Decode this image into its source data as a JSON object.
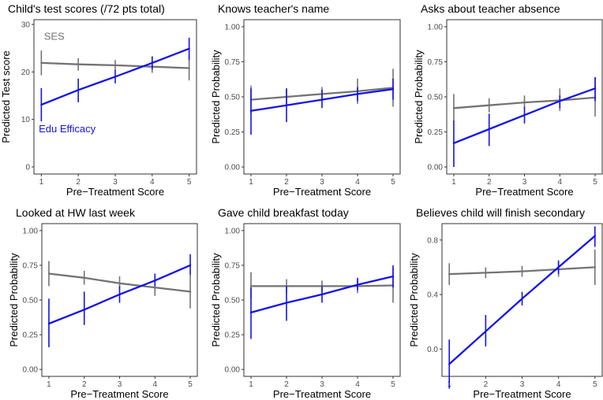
{
  "colors": {
    "ses": "#737373",
    "edu_efficacy": "#1414e6",
    "frame": "#333333"
  },
  "chart_data": [
    {
      "type": "line",
      "title": "Child's test scores (/72 pts total)",
      "xlabel": "Pre−Treatment Score",
      "ylabel": "Predicted Test score",
      "xlim": [
        0.8,
        5.2
      ],
      "ylim": [
        -1.5,
        31
      ],
      "x_ticks": [
        1,
        2,
        3,
        4,
        5
      ],
      "y_ticks": [
        0,
        10,
        20,
        30
      ],
      "y_tick_labels": [
        "0",
        "10",
        "20",
        "30"
      ],
      "annotations": [
        {
          "text": "SES",
          "series": "ses",
          "x": 1.35,
          "y": 26.8
        },
        {
          "text": "Edu Efficacy",
          "series": "edu_efficacy",
          "x": 1.7,
          "y": 7.3
        }
      ],
      "series": [
        {
          "key": "ses",
          "x": [
            1,
            2,
            3,
            4,
            5
          ],
          "y": [
            21.9,
            21.6,
            21.4,
            21.1,
            20.8
          ],
          "lo": [
            19.3,
            20.3,
            20.3,
            19.8,
            18.2
          ],
          "hi": [
            24.5,
            22.9,
            22.5,
            22.4,
            23.4
          ]
        },
        {
          "key": "edu_efficacy",
          "x": [
            1,
            2,
            3,
            4,
            5
          ],
          "y": [
            13.1,
            16.2,
            19.0,
            21.9,
            24.9
          ],
          "lo": [
            9.6,
            13.6,
            17.6,
            20.5,
            22.5
          ],
          "hi": [
            16.6,
            18.6,
            20.4,
            23.3,
            27.2
          ]
        }
      ]
    },
    {
      "type": "line",
      "title": "Knows teacher's name",
      "xlabel": "Pre−Treatment Score",
      "ylabel": "Predicted Probability",
      "xlim": [
        0.8,
        5.2
      ],
      "ylim": [
        -0.05,
        1.05
      ],
      "x_ticks": [
        1,
        2,
        3,
        4,
        5
      ],
      "y_ticks": [
        0,
        0.25,
        0.5,
        0.75,
        1.0
      ],
      "y_tick_labels": [
        "0.00",
        "0.25",
        "0.50",
        "0.75",
        "1.00"
      ],
      "series": [
        {
          "key": "ses",
          "x": [
            1,
            2,
            3,
            4,
            5
          ],
          "y": [
            0.48,
            0.5,
            0.52,
            0.54,
            0.565
          ],
          "lo": [
            0.38,
            0.44,
            0.47,
            0.45,
            0.43
          ],
          "hi": [
            0.58,
            0.56,
            0.57,
            0.63,
            0.7
          ]
        },
        {
          "key": "edu_efficacy",
          "x": [
            1,
            2,
            3,
            4,
            5
          ],
          "y": [
            0.4,
            0.44,
            0.48,
            0.52,
            0.555
          ],
          "lo": [
            0.23,
            0.32,
            0.42,
            0.47,
            0.48
          ],
          "hi": [
            0.56,
            0.56,
            0.55,
            0.57,
            0.63
          ]
        }
      ]
    },
    {
      "type": "line",
      "title": "Asks about teacher absence",
      "xlabel": "Pre−Treatment Score",
      "ylabel": "Predicted Probability",
      "xlim": [
        0.8,
        5.2
      ],
      "ylim": [
        -0.05,
        1.05
      ],
      "x_ticks": [
        1,
        2,
        3,
        4,
        5
      ],
      "y_ticks": [
        0,
        0.25,
        0.5,
        0.75,
        1.0
      ],
      "y_tick_labels": [
        "0.00",
        "0.25",
        "0.50",
        "0.75",
        "1.00"
      ],
      "series": [
        {
          "key": "ses",
          "x": [
            1,
            2,
            3,
            4,
            5
          ],
          "y": [
            0.42,
            0.44,
            0.46,
            0.475,
            0.495
          ],
          "lo": [
            0.32,
            0.39,
            0.42,
            0.4,
            0.36
          ],
          "hi": [
            0.52,
            0.49,
            0.51,
            0.56,
            0.64
          ]
        },
        {
          "key": "edu_efficacy",
          "x": [
            1,
            2,
            3,
            4,
            5
          ],
          "y": [
            0.17,
            0.27,
            0.37,
            0.47,
            0.56
          ],
          "lo": [
            0.0,
            0.15,
            0.31,
            0.42,
            0.47
          ],
          "hi": [
            0.33,
            0.38,
            0.43,
            0.51,
            0.64
          ]
        }
      ]
    },
    {
      "type": "line",
      "title": "Looked at HW last week",
      "xlabel": "Pre−Treatment Score",
      "ylabel": "Predicted Probability",
      "xlim": [
        0.8,
        5.2
      ],
      "ylim": [
        -0.05,
        1.05
      ],
      "x_ticks": [
        1,
        2,
        3,
        4,
        5
      ],
      "y_ticks": [
        0,
        0.25,
        0.5,
        0.75,
        1.0
      ],
      "y_tick_labels": [
        "0.00",
        "0.25",
        "0.50",
        "0.75",
        "1.00"
      ],
      "series": [
        {
          "key": "ses",
          "x": [
            1,
            2,
            3,
            4,
            5
          ],
          "y": [
            0.69,
            0.66,
            0.62,
            0.59,
            0.56
          ],
          "lo": [
            0.6,
            0.61,
            0.58,
            0.53,
            0.44
          ],
          "hi": [
            0.78,
            0.71,
            0.67,
            0.65,
            0.68
          ]
        },
        {
          "key": "edu_efficacy",
          "x": [
            1,
            2,
            3,
            4,
            5
          ],
          "y": [
            0.33,
            0.43,
            0.54,
            0.64,
            0.75
          ],
          "lo": [
            0.16,
            0.32,
            0.48,
            0.6,
            0.68
          ],
          "hi": [
            0.51,
            0.56,
            0.6,
            0.69,
            0.83
          ]
        }
      ]
    },
    {
      "type": "line",
      "title": "Gave child breakfast today",
      "xlabel": "Pre−Treatment Score",
      "ylabel": "Predicted Probability",
      "xlim": [
        0.8,
        5.2
      ],
      "ylim": [
        -0.05,
        1.05
      ],
      "x_ticks": [
        1,
        2,
        3,
        4,
        5
      ],
      "y_ticks": [
        0,
        0.25,
        0.5,
        0.75,
        1.0
      ],
      "y_tick_labels": [
        "0.00",
        "0.25",
        "0.50",
        "0.75",
        "1.00"
      ],
      "series": [
        {
          "key": "ses",
          "x": [
            1,
            2,
            3,
            4,
            5
          ],
          "y": [
            0.6,
            0.6,
            0.6,
            0.6,
            0.605
          ],
          "lo": [
            0.51,
            0.55,
            0.56,
            0.55,
            0.48
          ],
          "hi": [
            0.7,
            0.65,
            0.64,
            0.65,
            0.73
          ]
        },
        {
          "key": "edu_efficacy",
          "x": [
            1,
            2,
            3,
            4,
            5
          ],
          "y": [
            0.41,
            0.48,
            0.54,
            0.61,
            0.67
          ],
          "lo": [
            0.22,
            0.35,
            0.48,
            0.57,
            0.59
          ],
          "hi": [
            0.59,
            0.6,
            0.6,
            0.66,
            0.75
          ]
        }
      ]
    },
    {
      "type": "line",
      "title": "Believes child will finish secondary",
      "xlabel": "Pre−Treatment Score",
      "ylabel": "Predicted Probability",
      "xlim": [
        0.8,
        5.2
      ],
      "ylim": [
        -0.2,
        0.92
      ],
      "x_ticks": [
        1,
        2,
        3,
        4,
        5
      ],
      "y_ticks": [
        0,
        0.4,
        0.8
      ],
      "y_tick_labels": [
        "0.0",
        "0.4",
        "0.8"
      ],
      "series": [
        {
          "key": "ses",
          "x": [
            1,
            2,
            3,
            4,
            5
          ],
          "y": [
            0.55,
            0.56,
            0.57,
            0.585,
            0.6
          ],
          "lo": [
            0.47,
            0.52,
            0.53,
            0.53,
            0.47
          ],
          "hi": [
            0.63,
            0.6,
            0.61,
            0.64,
            0.73
          ]
        },
        {
          "key": "edu_efficacy",
          "x": [
            1,
            2,
            3,
            4,
            5
          ],
          "y": [
            -0.11,
            0.13,
            0.37,
            0.6,
            0.83
          ],
          "lo": [
            -0.29,
            0.02,
            0.32,
            0.55,
            0.75
          ],
          "hi": [
            0.07,
            0.25,
            0.42,
            0.65,
            0.9
          ]
        }
      ]
    }
  ]
}
